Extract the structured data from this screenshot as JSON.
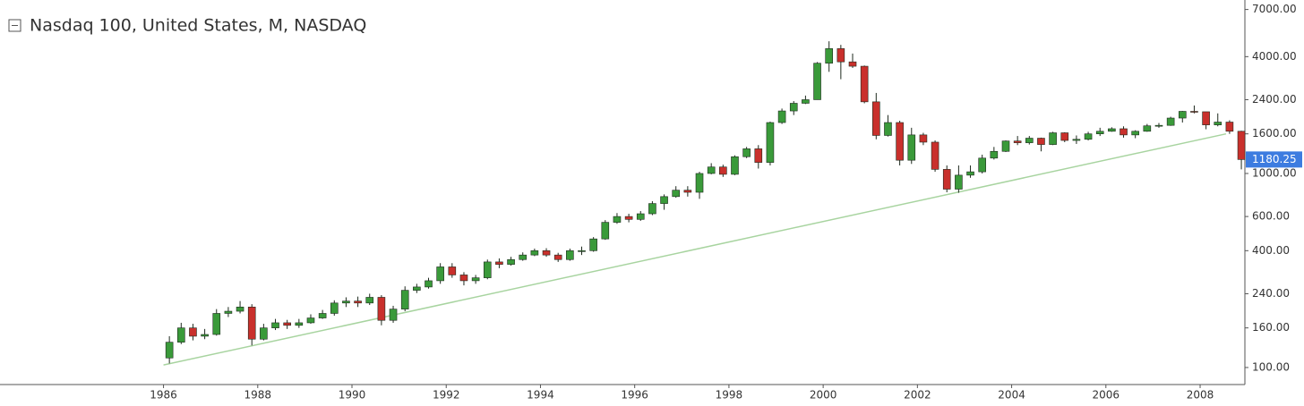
{
  "chart_data": {
    "type": "candlestick",
    "title": "Nasdaq 100, United States, M, NASDAQ",
    "log_scale": true,
    "grid": false,
    "up_color": "#3a9a3a",
    "down_color": "#c9302c",
    "wick_color": "#1e2a1e",
    "xlim": [
      1982.53,
      2008.95
    ],
    "xticks": [
      1986,
      1988,
      1990,
      1992,
      1994,
      1996,
      1998,
      2000,
      2002,
      2004,
      2006,
      2008
    ],
    "ylim": [
      81.7,
      7834
    ],
    "yticks": [
      {
        "value": 100,
        "label": "100.00"
      },
      {
        "value": 160,
        "label": "160.00"
      },
      {
        "value": 240,
        "label": "240.00"
      },
      {
        "value": 400,
        "label": "400.00"
      },
      {
        "value": 600,
        "label": "600.00"
      },
      {
        "value": 1000,
        "label": "1000.00"
      },
      {
        "value": 1600,
        "label": "1600.00"
      },
      {
        "value": 2400,
        "label": "2400.00"
      },
      {
        "value": 4000,
        "label": "4000.00"
      },
      {
        "value": 7000,
        "label": "7000.00"
      }
    ],
    "x": [
      1986.125,
      1986.375,
      1986.625,
      1986.875,
      1987.125,
      1987.375,
      1987.625,
      1987.875,
      1988.125,
      1988.375,
      1988.625,
      1988.875,
      1989.125,
      1989.375,
      1989.625,
      1989.875,
      1990.125,
      1990.375,
      1990.625,
      1990.875,
      1991.125,
      1991.375,
      1991.625,
      1991.875,
      1992.125,
      1992.375,
      1992.625,
      1992.875,
      1993.125,
      1993.375,
      1993.625,
      1993.875,
      1994.125,
      1994.375,
      1994.625,
      1994.875,
      1995.125,
      1995.375,
      1995.625,
      1995.875,
      1996.125,
      1996.375,
      1996.625,
      1996.875,
      1997.125,
      1997.375,
      1997.625,
      1997.875,
      1998.125,
      1998.375,
      1998.625,
      1998.875,
      1999.125,
      1999.375,
      1999.625,
      1999.875,
      2000.125,
      2000.375,
      2000.625,
      2000.875,
      2001.125,
      2001.375,
      2001.625,
      2001.875,
      2002.125,
      2002.375,
      2002.625,
      2002.875,
      2003.125,
      2003.375,
      2003.625,
      2003.875,
      2004.125,
      2004.375,
      2004.625,
      2004.875,
      2005.125,
      2005.375,
      2005.625,
      2005.875,
      2006.125,
      2006.375,
      2006.625,
      2006.875,
      2007.125,
      2007.375,
      2007.625,
      2007.875,
      2008.125,
      2008.375,
      2008.625,
      2008.875
    ],
    "open": [
      112,
      135,
      160,
      145,
      148,
      190,
      195,
      205,
      140,
      160,
      170,
      165,
      170,
      180,
      190,
      215,
      220,
      215,
      230,
      175,
      200,
      250,
      260,
      280,
      330,
      300,
      280,
      290,
      350,
      340,
      360,
      380,
      400,
      380,
      360,
      400,
      400,
      460,
      560,
      600,
      580,
      620,
      700,
      760,
      820,
      800,
      1000,
      1080,
      990,
      1220,
      1340,
      1140,
      1830,
      2100,
      2300,
      2400,
      3700,
      4400,
      3760,
      3570,
      2340,
      1570,
      1830,
      1170,
      1580,
      1450,
      1050,
      830,
      980,
      1020,
      1200,
      1300,
      1470,
      1440,
      1520,
      1410,
      1620,
      1480,
      1500,
      1600,
      1650,
      1700,
      1580,
      1650,
      1760,
      1770,
      1930,
      2090,
      2080,
      1780,
      1840,
      1650
    ],
    "high": [
      145,
      170,
      168,
      158,
      200,
      205,
      220,
      212,
      168,
      178,
      176,
      178,
      188,
      198,
      222,
      230,
      232,
      240,
      236,
      208,
      262,
      270,
      290,
      345,
      345,
      310,
      300,
      360,
      365,
      372,
      392,
      410,
      412,
      390,
      410,
      420,
      470,
      575,
      625,
      620,
      640,
      720,
      780,
      860,
      860,
      1020,
      1130,
      1110,
      1240,
      1370,
      1400,
      1850,
      2160,
      2360,
      2520,
      3750,
      4800,
      4600,
      4150,
      3600,
      2600,
      2000,
      1870,
      1720,
      1620,
      1480,
      1100,
      1100,
      1100,
      1250,
      1370,
      1480,
      1560,
      1560,
      1530,
      1640,
      1630,
      1570,
      1640,
      1720,
      1730,
      1750,
      1670,
      1800,
      1820,
      1960,
      2100,
      2240,
      2080,
      2040,
      1880,
      1660
    ],
    "low": [
      105,
      132,
      138,
      140,
      146,
      182,
      190,
      130,
      138,
      156,
      158,
      160,
      168,
      178,
      185,
      205,
      205,
      210,
      165,
      170,
      195,
      242,
      255,
      270,
      290,
      265,
      270,
      285,
      325,
      335,
      355,
      375,
      372,
      350,
      355,
      380,
      395,
      455,
      550,
      560,
      570,
      610,
      650,
      750,
      760,
      740,
      990,
      960,
      980,
      1200,
      1060,
      1100,
      1800,
      2000,
      2280,
      2400,
      3340,
      3060,
      3500,
      2300,
      1500,
      1550,
      1100,
      1120,
      1400,
      1020,
      800,
      795,
      950,
      1000,
      1180,
      1290,
      1400,
      1410,
      1300,
      1400,
      1450,
      1420,
      1480,
      1560,
      1640,
      1530,
      1520,
      1640,
      1720,
      1760,
      1830,
      2040,
      1690,
      1750,
      1600,
      1050
    ],
    "close": [
      135,
      160,
      145,
      148,
      190,
      195,
      205,
      140,
      160,
      170,
      165,
      170,
      180,
      190,
      215,
      220,
      215,
      230,
      175,
      200,
      250,
      260,
      280,
      330,
      300,
      280,
      290,
      350,
      340,
      360,
      380,
      400,
      380,
      360,
      400,
      400,
      460,
      560,
      600,
      580,
      620,
      700,
      760,
      820,
      800,
      1000,
      1080,
      990,
      1220,
      1340,
      1140,
      1830,
      2100,
      2300,
      2400,
      3700,
      4400,
      3760,
      3570,
      2340,
      1570,
      1830,
      1170,
      1580,
      1450,
      1050,
      830,
      980,
      1020,
      1200,
      1300,
      1470,
      1440,
      1520,
      1410,
      1620,
      1480,
      1500,
      1600,
      1650,
      1700,
      1580,
      1650,
      1760,
      1770,
      1930,
      2090,
      2080,
      1780,
      1840,
      1650,
      1180.25
    ],
    "trendline": {
      "x": [
        1986.0,
        2008.55
      ],
      "y": [
        103,
        1600
      ],
      "color": "#a8d4a0"
    },
    "last_label_color": "#3d7ce0"
  }
}
